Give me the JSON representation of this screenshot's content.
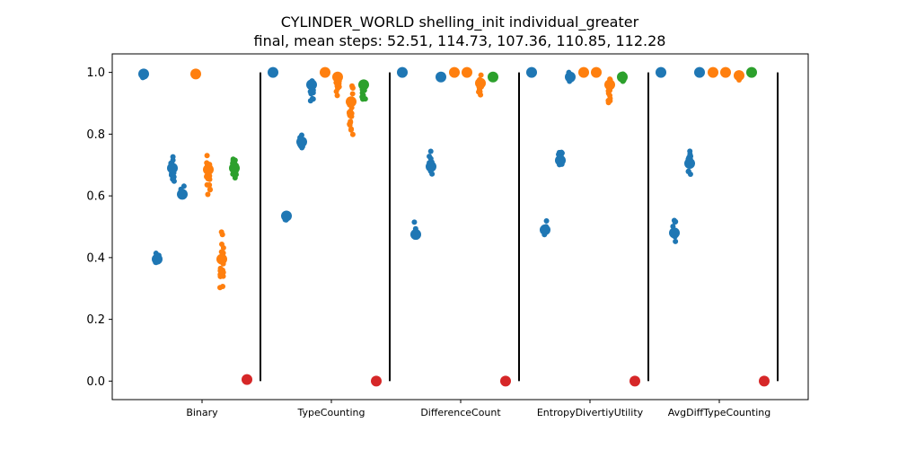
{
  "chart_data": {
    "type": "scatter",
    "title": "CYLINDER_WORLD shelling_init individual_greater",
    "subtitle": "final, mean steps: 52.51, 114.73, 107.36, 110.85, 112.28",
    "xlabel": "",
    "ylabel": "",
    "ylim": [
      -0.06,
      1.06
    ],
    "yticks": [
      0.0,
      0.2,
      0.4,
      0.6,
      0.8,
      1.0
    ],
    "ytick_labels": [
      "0.0",
      "0.2",
      "0.4",
      "0.6",
      "0.8",
      "1.0"
    ],
    "grid": false,
    "categories": [
      "Binary",
      "TypeCounting",
      "DifferenceCount",
      "EntropyDivertiyUtility",
      "AvgDiffTypeCounting"
    ],
    "colors": {
      "blue": "#1f77b4",
      "orange": "#ff7f0e",
      "green": "#2ca02c",
      "red": "#d62728",
      "separator": "#000000"
    },
    "groups": [
      {
        "category": "Binary",
        "clusters": [
          {
            "series": "blue",
            "mean": 0.995,
            "min": 0.98,
            "max": 1.0,
            "n": 6
          },
          {
            "series": "blue",
            "mean": 0.395,
            "min": 0.37,
            "max": 0.415,
            "n": 8
          },
          {
            "series": "blue",
            "mean": 0.69,
            "min": 0.63,
            "max": 0.745,
            "n": 16
          },
          {
            "series": "blue",
            "mean": 0.605,
            "min": 0.585,
            "max": 0.635,
            "n": 8
          },
          {
            "series": "orange",
            "mean": 0.995,
            "min": 0.98,
            "max": 1.0,
            "n": 6
          },
          {
            "series": "orange",
            "mean": 0.685,
            "min": 0.6,
            "max": 0.76,
            "n": 20
          },
          {
            "series": "orange",
            "mean": 0.395,
            "min": 0.28,
            "max": 0.495,
            "n": 22
          },
          {
            "series": "green",
            "mean": 0.69,
            "min": 0.63,
            "max": 0.745,
            "n": 16
          },
          {
            "series": "red",
            "mean": 0.005,
            "min": 0.0,
            "max": 0.015,
            "n": 3
          }
        ]
      },
      {
        "category": "TypeCounting",
        "clusters": [
          {
            "series": "blue",
            "mean": 1.0,
            "min": 0.995,
            "max": 1.0,
            "n": 3
          },
          {
            "series": "blue",
            "mean": 0.535,
            "min": 0.51,
            "max": 0.56,
            "n": 8
          },
          {
            "series": "blue",
            "mean": 0.775,
            "min": 0.74,
            "max": 0.81,
            "n": 10
          },
          {
            "series": "blue",
            "mean": 0.96,
            "min": 0.89,
            "max": 0.99,
            "n": 12
          },
          {
            "series": "orange",
            "mean": 1.0,
            "min": 0.995,
            "max": 1.0,
            "n": 3
          },
          {
            "series": "orange",
            "mean": 0.985,
            "min": 0.92,
            "max": 1.0,
            "n": 12
          },
          {
            "series": "orange",
            "mean": 0.905,
            "min": 0.76,
            "max": 0.985,
            "n": 20
          },
          {
            "series": "green",
            "mean": 0.96,
            "min": 0.89,
            "max": 0.99,
            "n": 12
          },
          {
            "series": "red",
            "mean": 0.0,
            "min": 0.0,
            "max": 0.0,
            "n": 1
          }
        ]
      },
      {
        "category": "DifferenceCount",
        "clusters": [
          {
            "series": "blue",
            "mean": 1.0,
            "min": 0.995,
            "max": 1.0,
            "n": 3
          },
          {
            "series": "blue",
            "mean": 0.475,
            "min": 0.445,
            "max": 0.52,
            "n": 8
          },
          {
            "series": "blue",
            "mean": 0.695,
            "min": 0.655,
            "max": 0.755,
            "n": 12
          },
          {
            "series": "blue",
            "mean": 0.985,
            "min": 0.975,
            "max": 1.0,
            "n": 5
          },
          {
            "series": "orange",
            "mean": 1.0,
            "min": 0.995,
            "max": 1.0,
            "n": 3
          },
          {
            "series": "orange",
            "mean": 1.0,
            "min": 0.995,
            "max": 1.0,
            "n": 3
          },
          {
            "series": "orange",
            "mean": 0.965,
            "min": 0.92,
            "max": 1.0,
            "n": 12
          },
          {
            "series": "green",
            "mean": 0.985,
            "min": 0.975,
            "max": 1.0,
            "n": 5
          },
          {
            "series": "red",
            "mean": 0.0,
            "min": 0.0,
            "max": 0.0,
            "n": 1
          }
        ]
      },
      {
        "category": "EntropyDivertiyUtility",
        "clusters": [
          {
            "series": "blue",
            "mean": 1.0,
            "min": 0.995,
            "max": 1.0,
            "n": 3
          },
          {
            "series": "blue",
            "mean": 0.49,
            "min": 0.455,
            "max": 0.525,
            "n": 8
          },
          {
            "series": "blue",
            "mean": 0.715,
            "min": 0.675,
            "max": 0.76,
            "n": 10
          },
          {
            "series": "blue",
            "mean": 0.985,
            "min": 0.96,
            "max": 1.0,
            "n": 6
          },
          {
            "series": "orange",
            "mean": 1.0,
            "min": 0.995,
            "max": 1.0,
            "n": 3
          },
          {
            "series": "orange",
            "mean": 1.0,
            "min": 0.995,
            "max": 1.0,
            "n": 3
          },
          {
            "series": "orange",
            "mean": 0.96,
            "min": 0.89,
            "max": 1.0,
            "n": 14
          },
          {
            "series": "green",
            "mean": 0.985,
            "min": 0.96,
            "max": 1.0,
            "n": 6
          },
          {
            "series": "red",
            "mean": 0.0,
            "min": 0.0,
            "max": 0.0,
            "n": 1
          }
        ]
      },
      {
        "category": "AvgDiffTypeCounting",
        "clusters": [
          {
            "series": "blue",
            "mean": 1.0,
            "min": 0.995,
            "max": 1.0,
            "n": 3
          },
          {
            "series": "blue",
            "mean": 0.48,
            "min": 0.45,
            "max": 0.535,
            "n": 8
          },
          {
            "series": "blue",
            "mean": 0.705,
            "min": 0.665,
            "max": 0.775,
            "n": 12
          },
          {
            "series": "blue",
            "mean": 1.0,
            "min": 0.995,
            "max": 1.0,
            "n": 3
          },
          {
            "series": "orange",
            "mean": 1.0,
            "min": 0.995,
            "max": 1.0,
            "n": 3
          },
          {
            "series": "orange",
            "mean": 1.0,
            "min": 0.995,
            "max": 1.0,
            "n": 3
          },
          {
            "series": "orange",
            "mean": 0.99,
            "min": 0.97,
            "max": 1.0,
            "n": 6
          },
          {
            "series": "green",
            "mean": 1.0,
            "min": 0.995,
            "max": 1.0,
            "n": 3
          },
          {
            "series": "red",
            "mean": 0.0,
            "min": 0.0,
            "max": 0.0,
            "n": 1
          }
        ]
      }
    ]
  }
}
